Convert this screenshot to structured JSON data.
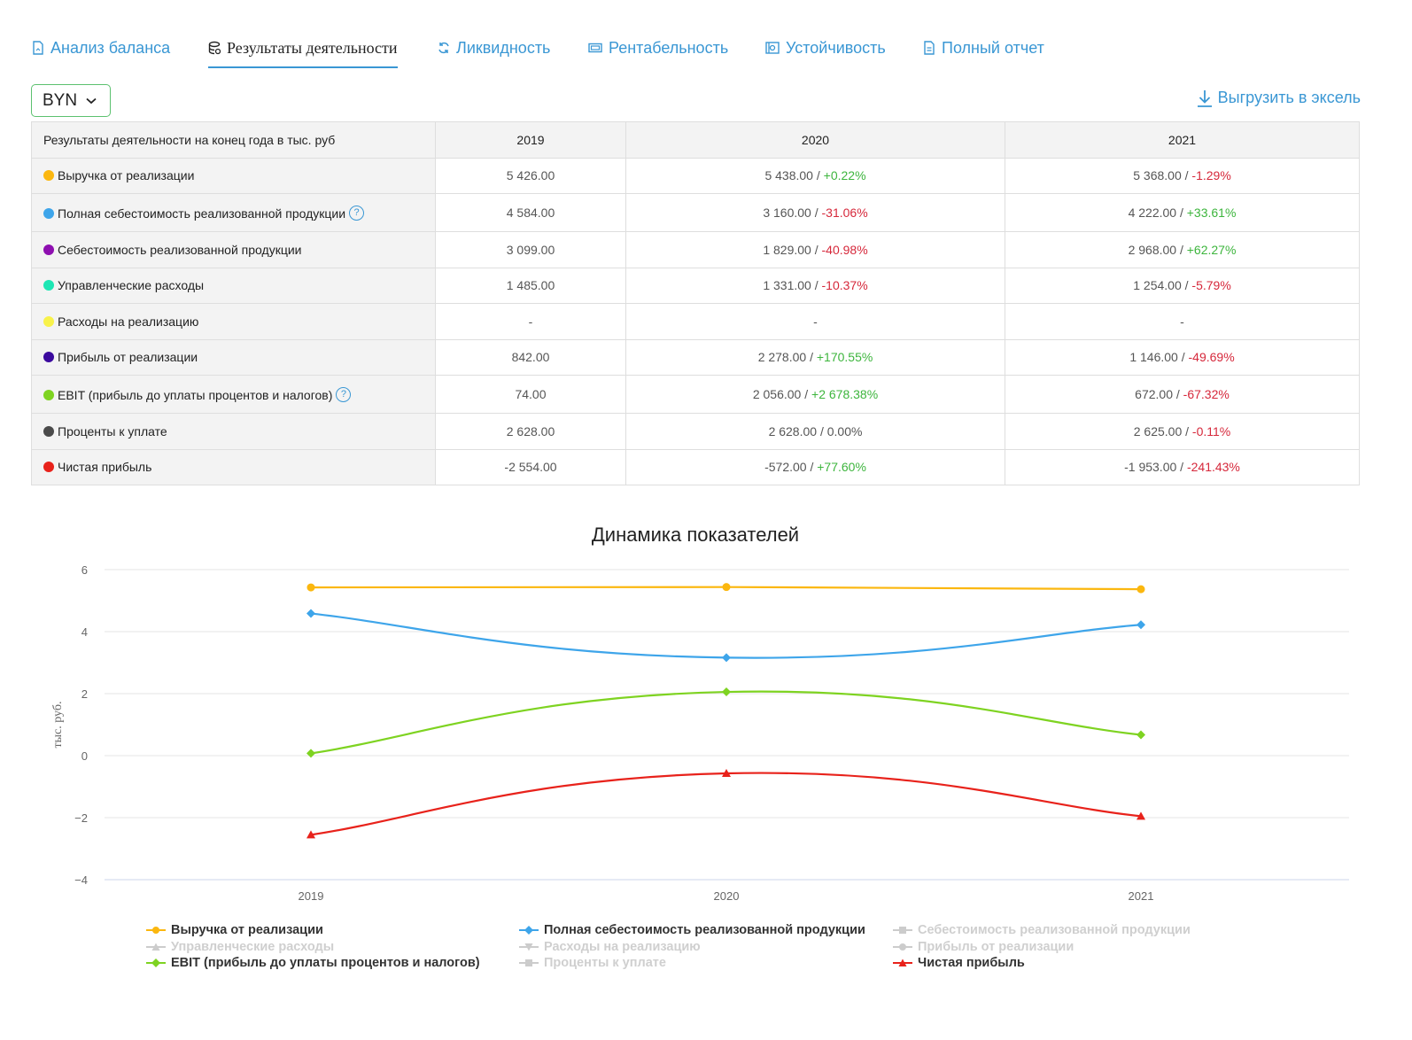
{
  "tabs": [
    {
      "label": "Анализ баланса",
      "icon": "document-icon"
    },
    {
      "label": "Результаты деятельности",
      "icon": "coins-icon"
    },
    {
      "label": "Ликвидность",
      "icon": "refresh-icon"
    },
    {
      "label": "Рентабельность",
      "icon": "banknote-icon"
    },
    {
      "label": "Устойчивость",
      "icon": "safe-icon"
    },
    {
      "label": "Полный отчет",
      "icon": "report-icon"
    }
  ],
  "toolbar": {
    "currency": "BYN",
    "export_label": "Выгрузить в эксель"
  },
  "table": {
    "header": {
      "title": "Результаты деятельности на конец года в тыс. руб",
      "y2019": "2019",
      "y2020": "2020",
      "y2021": "2021"
    },
    "rows": [
      {
        "label": "Выручка от реализации",
        "color": "#fbb70f",
        "help": false,
        "v2019": "5 426.00",
        "v2020": "5 438.00",
        "c2020": "+0.22%",
        "s2020": "pos",
        "v2021": "5 368.00",
        "c2021": "-1.29%",
        "s2021": "neg"
      },
      {
        "label": "Полная себестоимость реализованной продукции",
        "color": "#3ea5ea",
        "help": true,
        "v2019": "4 584.00",
        "v2020": "3 160.00",
        "c2020": "-31.06%",
        "s2020": "neg",
        "v2021": "4 222.00",
        "c2021": "+33.61%",
        "s2021": "pos"
      },
      {
        "label": "Себестоимость реализованной продукции",
        "color": "#8e0fb0",
        "help": false,
        "v2019": "3 099.00",
        "v2020": "1 829.00",
        "c2020": "-40.98%",
        "s2020": "neg",
        "v2021": "2 968.00",
        "c2021": "+62.27%",
        "s2021": "pos"
      },
      {
        "label": "Управленческие расходы",
        "color": "#1de6b4",
        "help": false,
        "v2019": "1 485.00",
        "v2020": "1 331.00",
        "c2020": "-10.37%",
        "s2020": "neg",
        "v2021": "1 254.00",
        "c2021": "-5.79%",
        "s2021": "neg"
      },
      {
        "label": "Расходы на реализацию",
        "color": "#f8f24a",
        "help": false,
        "v2019": "-",
        "v2020": "-",
        "c2020": "",
        "s2020": "",
        "v2021": "-",
        "c2021": "",
        "s2021": ""
      },
      {
        "label": "Прибыль от реализации",
        "color": "#3b0a9e",
        "help": false,
        "v2019": "842.00",
        "v2020": "2 278.00",
        "c2020": "+170.55%",
        "s2020": "pos",
        "v2021": "1 146.00",
        "c2021": "-49.69%",
        "s2021": "neg"
      },
      {
        "label": "EBIT (прибыль до уплаты процентов и налогов)",
        "color": "#7ed321",
        "help": true,
        "v2019": "74.00",
        "v2020": "2 056.00",
        "c2020": "+2 678.38%",
        "s2020": "pos",
        "v2021": "672.00",
        "c2021": "-67.32%",
        "s2021": "neg"
      },
      {
        "label": "Проценты к уплате",
        "color": "#4a4a4a",
        "help": false,
        "v2019": "2 628.00",
        "v2020": "2 628.00",
        "c2020": "0.00%",
        "s2020": "",
        "v2021": "2 625.00",
        "c2021": "-0.11%",
        "s2021": "neg"
      },
      {
        "label": "Чистая прибыль",
        "color": "#e8221b",
        "help": false,
        "v2019": "-2 554.00",
        "v2020": "-572.00",
        "c2020": "+77.60%",
        "s2020": "pos",
        "v2021": "-1 953.00",
        "c2021": "-241.43%",
        "s2021": "neg"
      }
    ]
  },
  "chart_data": {
    "type": "line",
    "title": "Динамика показателей",
    "ylabel": "тыс. руб.",
    "xlabel": "",
    "ylim": [
      -4,
      6
    ],
    "yticks": [
      "6",
      "4",
      "2",
      "0",
      "−2",
      "−4"
    ],
    "categories": [
      "2019",
      "2020",
      "2021"
    ],
    "series": [
      {
        "name": "Выручка от реализации",
        "color": "#fbb70f",
        "marker": "circle",
        "visible": true,
        "values": [
          5.426,
          5.438,
          5.368
        ]
      },
      {
        "name": "Полная себестоимость реализованной продукции",
        "color": "#3ea5ea",
        "marker": "diamond",
        "visible": true,
        "values": [
          4.584,
          3.16,
          4.222
        ]
      },
      {
        "name": "Себестоимость реализованной продукции",
        "color": "#cccccc",
        "marker": "square",
        "visible": false,
        "values": [
          3.099,
          1.829,
          2.968
        ]
      },
      {
        "name": "Управленческие расходы",
        "color": "#cccccc",
        "marker": "triangle",
        "visible": false,
        "values": [
          1.485,
          1.331,
          1.254
        ]
      },
      {
        "name": "Расходы на реализацию",
        "color": "#cccccc",
        "marker": "triangle-down",
        "visible": false,
        "values": [
          null,
          null,
          null
        ]
      },
      {
        "name": "Прибыль от реализации",
        "color": "#cccccc",
        "marker": "circle",
        "visible": false,
        "values": [
          0.842,
          2.278,
          1.146
        ]
      },
      {
        "name": "EBIT (прибыль до уплаты процентов и налогов)",
        "color": "#7ed321",
        "marker": "diamond",
        "visible": true,
        "values": [
          0.074,
          2.056,
          0.672
        ]
      },
      {
        "name": "Проценты к уплате",
        "color": "#cccccc",
        "marker": "square",
        "visible": false,
        "values": [
          2.628,
          2.628,
          2.625
        ]
      },
      {
        "name": "Чистая прибыль",
        "color": "#e8221b",
        "marker": "triangle",
        "visible": true,
        "values": [
          -2.554,
          -0.572,
          -1.953
        ]
      }
    ]
  }
}
